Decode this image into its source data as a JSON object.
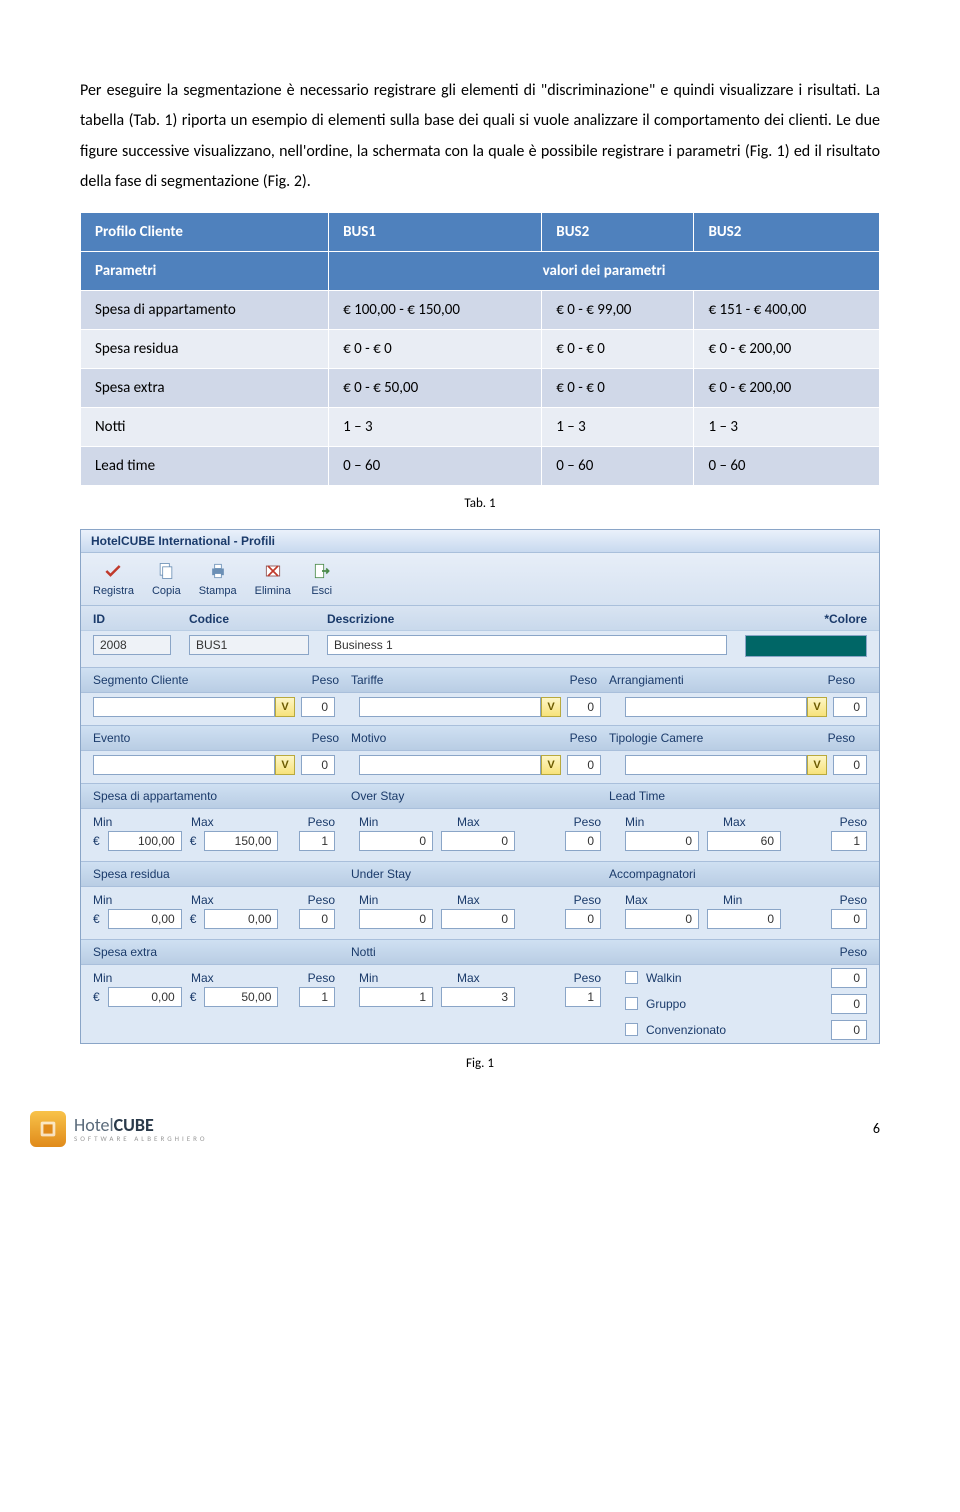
{
  "text": {
    "para1": "Per eseguire la segmentazione è necessario registrare gli elementi di \"discriminazione\" e quindi visualizzare i risultati. La tabella (Tab. 1) riporta un esempio di elementi sulla base dei quali si vuole analizzare il comportamento dei clienti. Le due figure successive visualizzano, nell'ordine, la schermata con la quale è possibile registrare i parametri (Fig. 1) ed il risultato della fase di segmentazione (Fig. 2).",
    "tab_caption": "Tab. 1",
    "fig_caption": "Fig. 1"
  },
  "table": {
    "headers": [
      "Profilo Cliente",
      "BUS1",
      "BUS2",
      "BUS2"
    ],
    "subheaders": [
      "Parametri",
      "valori dei parametri"
    ],
    "rows": [
      [
        "Spesa di appartamento",
        "€ 100,00 - € 150,00",
        "€ 0 - € 99,00",
        "€ 151 - € 400,00"
      ],
      [
        "Spesa residua",
        "€ 0 - € 0",
        "€ 0 - € 0",
        "€ 0 - € 200,00"
      ],
      [
        "Spesa extra",
        "€ 0 - € 50,00",
        "€ 0 - € 0",
        "€ 0 - € 200,00"
      ],
      [
        "Notti",
        "1 – 3",
        "1 – 3",
        "1 – 3"
      ],
      [
        "Lead time",
        "0 – 60",
        "0 – 60",
        "0 – 60"
      ]
    ]
  },
  "app": {
    "title": "HotelCUBE International - Profili",
    "toolbar": [
      {
        "label": "Registra",
        "icon": "check",
        "color": "#c0392b"
      },
      {
        "label": "Copia",
        "icon": "copy",
        "color": "#6b8fb5"
      },
      {
        "label": "Stampa",
        "icon": "print",
        "color": "#6b8fb5"
      },
      {
        "label": "Elimina",
        "icon": "delete",
        "color": "#8a4a4a"
      },
      {
        "label": "Esci",
        "icon": "exit",
        "color": "#4a8a4a"
      }
    ],
    "header_labels": {
      "id": "ID",
      "codice": "Codice",
      "descr": "Descrizione",
      "colore": "*Colore"
    },
    "header_values": {
      "id": "2008",
      "codice": "BUS1",
      "descr": "Business 1"
    },
    "row1": [
      {
        "label": "Segmento Cliente",
        "peso_label": "Peso",
        "peso": "0"
      },
      {
        "label": "Tariffe",
        "peso_label": "Peso",
        "peso": "0"
      },
      {
        "label": "Arrangiamenti",
        "peso_label": "Peso",
        "peso": "0"
      }
    ],
    "row2": [
      {
        "label": "Evento",
        "peso_label": "Peso",
        "peso": "0"
      },
      {
        "label": "Motivo",
        "peso_label": "Peso",
        "peso": "0"
      },
      {
        "label": "Tipologie Camere",
        "peso_label": "Peso",
        "peso": "0"
      }
    ],
    "sections": [
      {
        "left": {
          "title": "Spesa di appartamento",
          "min_label": "Min",
          "max_label": "Max",
          "peso_label": "Peso",
          "euro": "€",
          "min": "100,00",
          "max": "150,00",
          "peso": "1"
        },
        "mid": {
          "title": "Over Stay",
          "min_label": "Min",
          "max_label": "Max",
          "peso_label": "Peso",
          "min": "0",
          "max": "0",
          "peso": "0"
        },
        "right": {
          "title": "Lead Time",
          "min_label": "Min",
          "max_label": "Max",
          "peso_label": "Peso",
          "min": "0",
          "max": "60",
          "peso": "1"
        }
      },
      {
        "left": {
          "title": "Spesa residua",
          "min_label": "Min",
          "max_label": "Max",
          "peso_label": "Peso",
          "euro": "€",
          "min": "0,00",
          "max": "0,00",
          "peso": "0"
        },
        "mid": {
          "title": "Under Stay",
          "min_label": "Min",
          "max_label": "Max",
          "peso_label": "Peso",
          "min": "0",
          "max": "0",
          "peso": "0"
        },
        "right": {
          "title": "Accompagnatori",
          "min_label": "Max",
          "max_label": "Min",
          "peso_label": "Peso",
          "min": "0",
          "max": "0",
          "peso": "0"
        }
      },
      {
        "left": {
          "title": "Spesa extra",
          "min_label": "Min",
          "max_label": "Max",
          "peso_label": "Peso",
          "euro": "€",
          "min": "0,00",
          "max": "50,00",
          "peso": "1"
        },
        "mid": {
          "title": "Notti",
          "min_label": "Min",
          "max_label": "Max",
          "peso_label": "Peso",
          "min": "1",
          "max": "3",
          "peso": "1"
        },
        "right_checks": {
          "peso_label": "Peso",
          "items": [
            {
              "label": "Walkin",
              "val": "0"
            },
            {
              "label": "Gruppo",
              "val": "0"
            },
            {
              "label": "Convenzionato",
              "val": "0"
            }
          ]
        }
      }
    ]
  },
  "footer": {
    "logo_hotel": "Hotel",
    "logo_cube": "CUBE",
    "logo_sub": "SOFTWARE ALBERGHIERO",
    "page": "6"
  }
}
